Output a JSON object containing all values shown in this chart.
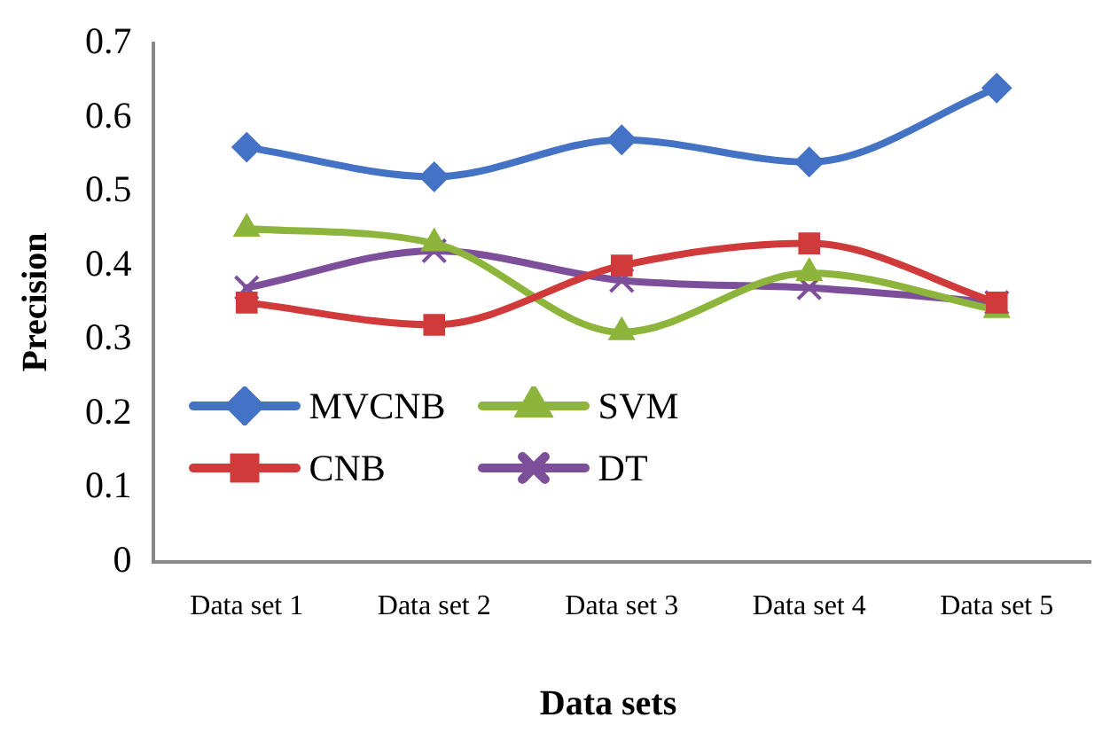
{
  "chart_data": {
    "type": "line",
    "xlabel": "Data sets",
    "ylabel": "Precision",
    "categories": [
      "Data set 1",
      "Data set 2",
      "Data set 3",
      "Data set 4",
      "Data set 5"
    ],
    "series": [
      {
        "name": "MVCNB",
        "color": "#4472c4",
        "marker": "diamond",
        "values": [
          0.56,
          0.52,
          0.57,
          0.54,
          0.64
        ]
      },
      {
        "name": "CNB",
        "color": "#d03a3a",
        "marker": "square",
        "values": [
          0.35,
          0.32,
          0.4,
          0.43,
          0.35
        ]
      },
      {
        "name": "SVM",
        "color": "#8db53c",
        "marker": "triangle",
        "values": [
          0.45,
          0.43,
          0.31,
          0.39,
          0.34
        ]
      },
      {
        "name": "DT",
        "color": "#7d4f9a",
        "marker": "cross",
        "values": [
          0.37,
          0.42,
          0.38,
          0.37,
          0.35
        ]
      }
    ],
    "ylim": [
      0,
      0.7
    ],
    "yticks": [
      0,
      0.1,
      0.2,
      0.3,
      0.4,
      0.5,
      0.6,
      0.7
    ],
    "grid": false,
    "legend": "bottom left",
    "line_style": "solid"
  }
}
